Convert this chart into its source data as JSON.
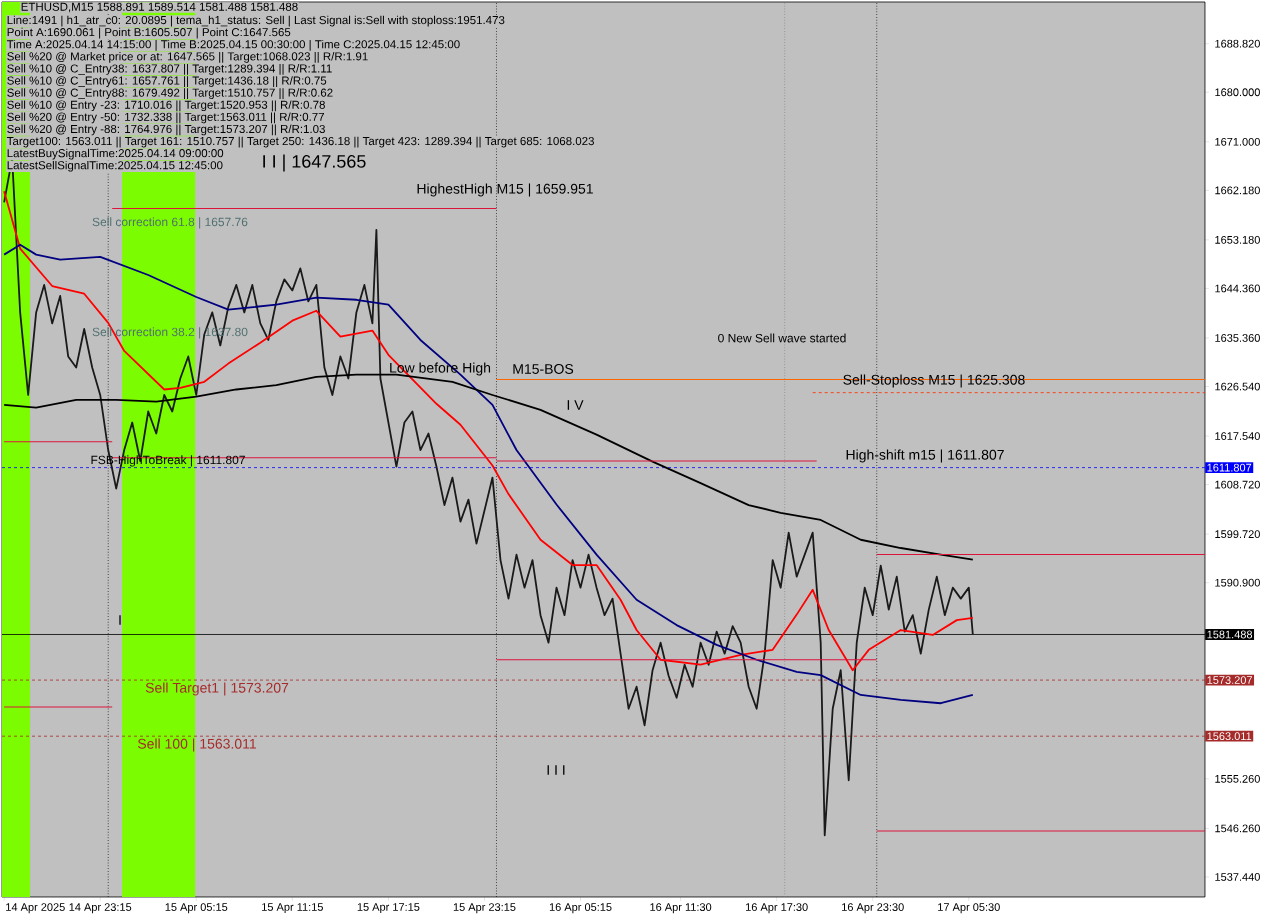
{
  "chart_data": {
    "type": "line",
    "title": "ETHUSD,M15  1588.891 1589.514 1581.488 1581.488",
    "x": [
      "2025-04-14T17:15",
      "2025-04-14T17:45",
      "2025-04-14T18:15",
      "2025-04-14T18:45",
      "2025-04-14T19:15",
      "2025-04-14T19:45",
      "2025-04-14T20:15",
      "2025-04-14T20:45",
      "2025-04-14T21:15",
      "2025-04-14T21:45",
      "2025-04-14T22:15",
      "2025-04-14T22:45",
      "2025-04-14T23:15",
      "2025-04-14T23:45",
      "2025-04-15T00:15",
      "2025-04-15T00:45",
      "2025-04-15T01:15",
      "2025-04-15T01:45",
      "2025-04-15T02:15",
      "2025-04-15T02:45",
      "2025-04-15T03:15",
      "2025-04-15T03:45",
      "2025-04-15T04:15",
      "2025-04-15T04:45",
      "2025-04-15T05:15",
      "2025-04-15T05:45",
      "2025-04-15T06:15",
      "2025-04-15T06:45",
      "2025-04-15T07:15",
      "2025-04-15T07:45",
      "2025-04-15T08:15",
      "2025-04-15T08:45",
      "2025-04-15T09:15",
      "2025-04-15T09:45",
      "2025-04-15T10:15",
      "2025-04-15T10:45",
      "2025-04-15T11:15",
      "2025-04-15T11:45",
      "2025-04-15T12:15",
      "2025-04-15T12:45",
      "2025-04-15T13:15",
      "2025-04-15T13:45",
      "2025-04-15T14:15",
      "2025-04-15T14:45",
      "2025-04-15T15:15",
      "2025-04-15T15:45",
      "2025-04-15T16:15",
      "2025-04-15T16:30",
      "2025-04-15T16:45",
      "2025-04-15T17:15",
      "2025-04-15T17:45",
      "2025-04-15T18:15",
      "2025-04-15T18:45",
      "2025-04-15T19:15",
      "2025-04-15T19:45",
      "2025-04-15T20:15",
      "2025-04-15T20:45",
      "2025-04-15T21:15",
      "2025-04-15T21:45",
      "2025-04-15T22:15",
      "2025-04-15T22:45",
      "2025-04-15T23:15",
      "2025-04-15T23:45",
      "2025-04-16T00:15",
      "2025-04-16T00:45",
      "2025-04-16T01:15",
      "2025-04-16T01:45",
      "2025-04-16T02:15",
      "2025-04-16T02:45",
      "2025-04-16T03:15",
      "2025-04-16T03:45",
      "2025-04-16T04:15",
      "2025-04-16T04:45",
      "2025-04-16T05:15",
      "2025-04-16T05:45",
      "2025-04-16T06:15",
      "2025-04-16T06:45",
      "2025-04-16T07:15",
      "2025-04-16T07:45",
      "2025-04-16T08:15",
      "2025-04-16T08:45",
      "2025-04-16T09:15",
      "2025-04-16T09:45",
      "2025-04-16T10:15",
      "2025-04-16T10:45",
      "2025-04-16T11:15",
      "2025-04-16T11:45",
      "2025-04-16T12:15",
      "2025-04-16T12:45",
      "2025-04-16T13:15",
      "2025-04-16T13:45",
      "2025-04-16T14:15",
      "2025-04-16T14:45",
      "2025-04-16T15:15",
      "2025-04-16T15:45",
      "2025-04-16T16:15",
      "2025-04-16T16:45",
      "2025-04-16T17:15",
      "2025-04-16T17:45",
      "2025-04-16T18:15",
      "2025-04-16T18:45",
      "2025-04-16T19:15",
      "2025-04-16T19:45",
      "2025-04-16T20:15",
      "2025-04-16T20:30",
      "2025-04-16T21:00",
      "2025-04-16T21:30",
      "2025-04-16T22:00",
      "2025-04-16T22:30",
      "2025-04-16T23:00",
      "2025-04-16T23:30",
      "2025-04-17T00:00",
      "2025-04-17T00:30",
      "2025-04-17T01:00",
      "2025-04-17T01:30",
      "2025-04-17T02:00",
      "2025-04-17T02:30",
      "2025-04-17T03:00",
      "2025-04-17T03:30",
      "2025-04-17T04:00",
      "2025-04-17T04:30",
      "2025-04-17T05:00",
      "2025-04-17T05:30",
      "2025-04-17T05:45"
    ],
    "series": [
      {
        "color": "#1a1a1a",
        "values": [
          1660,
          1668,
          1640,
          1625,
          1640,
          1645,
          1638,
          1643,
          1632,
          1630,
          1637,
          1630,
          1625,
          1615,
          1608,
          1615,
          1620,
          1613,
          1622,
          1618,
          1625,
          1622,
          1628,
          1632,
          1625,
          1636,
          1640,
          1634,
          1641,
          1645,
          1640,
          1645,
          1638,
          1635,
          1642,
          1646,
          1644,
          1648,
          1642,
          1645,
          1630,
          1625,
          1632,
          1628,
          1640,
          1645,
          1638,
          1655,
          1628,
          1620,
          1612,
          1620,
          1622,
          1615,
          1618,
          1612,
          1605,
          1610,
          1602,
          1606,
          1598,
          1604,
          1610,
          1595,
          1588,
          1596,
          1590,
          1595,
          1585,
          1580,
          1590,
          1585,
          1595,
          1590,
          1596,
          1590,
          1585,
          1588,
          1578,
          1568,
          1572,
          1565,
          1575,
          1580,
          1574,
          1570,
          1576,
          1572,
          1580,
          1576,
          1582,
          1578,
          1583,
          1580,
          1572,
          1568,
          1578,
          1595,
          1590,
          1600,
          1592,
          1596,
          1600,
          1580,
          1545,
          1568,
          1575,
          1555,
          1580,
          1590,
          1585,
          1594,
          1586,
          1592,
          1582,
          1585,
          1578,
          1586,
          1592,
          1585,
          1590,
          1588,
          1590,
          1581.5
        ]
      },
      {
        "color": "#ff0000",
        "x": [
          "2025-04-14T17:15",
          "2025-04-14T18:15",
          "2025-04-14T20:15",
          "2025-04-14T22:15",
          "2025-04-14T23:45",
          "2025-04-15T00:45",
          "2025-04-15T03:15",
          "2025-04-15T04:15",
          "2025-04-15T05:45",
          "2025-04-15T07:15",
          "2025-04-15T09:15",
          "2025-04-15T11:15",
          "2025-04-15T12:45",
          "2025-04-15T14:15",
          "2025-04-15T16:15",
          "2025-04-15T17:15",
          "2025-04-15T20:15",
          "2025-04-15T21:45",
          "2025-04-15T23:45",
          "2025-04-16T00:45",
          "2025-04-16T02:45",
          "2025-04-16T04:45",
          "2025-04-16T06:15",
          "2025-04-16T07:45",
          "2025-04-16T08:45",
          "2025-04-16T10:15",
          "2025-04-16T12:45",
          "2025-04-16T15:15",
          "2025-04-16T17:15",
          "2025-04-16T18:45",
          "2025-04-16T19:45",
          "2025-04-16T20:45",
          "2025-04-16T22:15",
          "2025-04-16T23:15",
          "2025-04-17T01:15",
          "2025-04-17T03:15",
          "2025-04-17T04:45",
          "2025-04-17T05:45"
        ],
        "values": [
          1662,
          1651.6,
          1644.8,
          1643.4,
          1638.1,
          1633,
          1626,
          1626.3,
          1627.4,
          1630.7,
          1634.5,
          1638.5,
          1640.3,
          1635.6,
          1636.7,
          1632.3,
          1623.4,
          1619.6,
          1612.2,
          1607,
          1598.7,
          1594.1,
          1594.1,
          1587.8,
          1582.3,
          1576.9,
          1576,
          1577.8,
          1578.7,
          1585.1,
          1589.6,
          1582.3,
          1575,
          1578.7,
          1582.3,
          1581.4,
          1584.1,
          1584.5
        ]
      },
      {
        "color": "#000080",
        "x": [
          "2025-04-14T17:15",
          "2025-04-14T18:15",
          "2025-04-14T19:15",
          "2025-04-14T20:45",
          "2025-04-14T23:15",
          "2025-04-15T02:15",
          "2025-04-15T05:15",
          "2025-04-15T07:15",
          "2025-04-15T10:15",
          "2025-04-15T12:45",
          "2025-04-15T15:15",
          "2025-04-15T17:15",
          "2025-04-15T19:15",
          "2025-04-15T21:45",
          "2025-04-15T23:45",
          "2025-04-16T01:15",
          "2025-04-16T03:45",
          "2025-04-16T06:15",
          "2025-04-16T08:45",
          "2025-04-16T11:15",
          "2025-04-16T13:45",
          "2025-04-16T16:15",
          "2025-04-16T18:45",
          "2025-04-16T20:15",
          "2025-04-16T22:45",
          "2025-04-17T01:15",
          "2025-04-17T03:45",
          "2025-04-17T05:45"
        ],
        "values": [
          1650.5,
          1652.3,
          1650.5,
          1649.6,
          1650.1,
          1646.8,
          1642.8,
          1640.5,
          1641.4,
          1642.7,
          1642.3,
          1641.4,
          1635.0,
          1628.7,
          1623.2,
          1615.0,
          1605.1,
          1596.0,
          1587.8,
          1583.2,
          1579.6,
          1576.9,
          1574.7,
          1574.1,
          1570.5,
          1569.6,
          1569.0,
          1570.5
        ]
      },
      {
        "color": "#000000",
        "x": [
          "2025-04-14T17:15",
          "2025-04-14T19:15",
          "2025-04-14T21:45",
          "2025-04-15T00:15",
          "2025-04-15T02:45",
          "2025-04-15T05:15",
          "2025-04-15T07:45",
          "2025-04-15T10:15",
          "2025-04-15T12:45",
          "2025-04-15T15:15",
          "2025-04-15T17:45",
          "2025-04-15T21:15",
          "2025-04-15T23:45",
          "2025-04-16T02:45",
          "2025-04-16T06:15",
          "2025-04-16T09:45",
          "2025-04-16T12:45",
          "2025-04-16T15:45",
          "2025-04-16T17:45",
          "2025-04-16T20:15",
          "2025-04-16T22:45",
          "2025-04-17T01:15",
          "2025-04-17T03:45",
          "2025-04-17T05:45"
        ],
        "values": [
          1623.2,
          1622.7,
          1624.1,
          1624.1,
          1623.8,
          1624.7,
          1626.0,
          1626.8,
          1628.3,
          1628.7,
          1628.7,
          1627.4,
          1625.0,
          1622.3,
          1617.8,
          1612.9,
          1609.0,
          1605.0,
          1603.6,
          1602.3,
          1598.7,
          1597.2,
          1596.0,
          1595.1
        ]
      },
      {
        "color": "#dc143c",
        "x": [
          "2025-04-15T00:00",
          "2025-04-16T00:00"
        ],
        "values": [
          1658.9,
          1658.9
        ]
      },
      {
        "color": "#dc143c",
        "x": [
          "2025-04-14T17:15",
          "2025-04-15T00:00"
        ],
        "values": [
          1616.5,
          1616.5
        ]
      },
      {
        "color": "#dc143c",
        "x": [
          "2025-04-15T00:00",
          "2025-04-16T00:00"
        ],
        "values": [
          1613.6,
          1613.6
        ]
      },
      {
        "color": "#dc143c",
        "x": [
          "2025-04-16T00:00",
          "2025-04-16T20:00"
        ],
        "values": [
          1613.0,
          1613.0
        ]
      },
      {
        "color": "#dc143c",
        "x": [
          "2025-04-16T23:45",
          "2025-04-17T20:15"
        ],
        "values": [
          1596.0,
          1596.0
        ]
      },
      {
        "color": "#dc143c",
        "x": [
          "2025-04-16T00:00",
          "2025-04-16T23:45"
        ],
        "values": [
          1576.9,
          1576.9
        ]
      },
      {
        "color": "#dc143c",
        "x": [
          "2025-04-14T17:15",
          "2025-04-15T00:00"
        ],
        "values": [
          1568.3,
          1568.3
        ]
      },
      {
        "color": "#dc143c",
        "x": [
          "2025-04-16T23:45",
          "2025-04-17T20:15"
        ],
        "values": [
          1545.8,
          1545.8
        ]
      },
      {
        "color": "#ff6600",
        "x": [
          "2025-04-16T00:00",
          "2025-04-17T20:15"
        ],
        "values": [
          1627.8,
          1627.8
        ]
      },
      {
        "color": "#ff3300",
        "x": [
          "2025-04-16T19:45",
          "2025-04-17T20:15"
        ],
        "values": [
          1625.4,
          1625.4
        ],
        "line_style": "dashed"
      }
    ],
    "xlim": [
      "2025-04-14T17:07",
      "2025-04-17T20:15"
    ],
    "ylim": [
      1533.8,
      1696.4
    ],
    "xticks": [
      {
        "value": "2025-04-14T17:15",
        "label": "14 Apr 2025"
      },
      {
        "value": "2025-04-14T23:15",
        "label": "14 Apr 23:15"
      },
      {
        "value": "2025-04-15T05:15",
        "label": "15 Apr 05:15"
      },
      {
        "value": "2025-04-15T11:15",
        "label": "15 Apr 11:15"
      },
      {
        "value": "2025-04-15T17:15",
        "label": "15 Apr 17:15"
      },
      {
        "value": "2025-04-15T23:15",
        "label": "15 Apr 23:15"
      },
      {
        "value": "2025-04-16T05:15",
        "label": "16 Apr 05:15"
      },
      {
        "value": "2025-04-16T11:30",
        "label": "16 Apr 11:30"
      },
      {
        "value": "2025-04-16T17:30",
        "label": "16 Apr 17:30"
      },
      {
        "value": "2025-04-16T23:30",
        "label": "16 Apr 23:30"
      },
      {
        "value": "2025-04-17T05:30",
        "label": "17 Apr 05:30"
      }
    ],
    "yticks": [
      {
        "value": 1688.82,
        "label": "1688.820"
      },
      {
        "value": 1680,
        "label": "1680.000"
      },
      {
        "value": 1671,
        "label": "1671.000"
      },
      {
        "value": 1662.18,
        "label": "1662.180"
      },
      {
        "value": 1653.18,
        "label": "1653.180"
      },
      {
        "value": 1644.36,
        "label": "1644.360"
      },
      {
        "value": 1635.36,
        "label": "1635.360"
      },
      {
        "value": 1626.54,
        "label": "1626.540"
      },
      {
        "value": 1617.54,
        "label": "1617.540"
      },
      {
        "value": 1608.72,
        "label": "1608.720"
      },
      {
        "value": 1599.72,
        "label": "1599.720"
      },
      {
        "value": 1590.9,
        "label": "1590.900"
      },
      {
        "value": 1555.26,
        "label": "1555.260"
      },
      {
        "value": 1546.26,
        "label": "1546.260"
      },
      {
        "value": 1537.44,
        "label": "1537.440"
      }
    ],
    "ref_lines": [
      {
        "axis": "y",
        "value": 1611.807,
        "label": "1611.807",
        "color": "#0000ff",
        "line_style": "dashed"
      },
      {
        "axis": "y",
        "value": 1581.488,
        "label": "1581.488",
        "color": "#000000",
        "line_style": "solid"
      },
      {
        "axis": "y",
        "value": 1573.207,
        "label": "1573.207",
        "color": "#a52a2a",
        "line_style": "dashed"
      },
      {
        "axis": "y",
        "value": 1563.011,
        "label": "1563.011",
        "color": "#a52a2a",
        "line_style": "dashed"
      },
      {
        "axis": "x",
        "value": "2025-04-14T23:45",
        "color": "#000000",
        "line_style": "dotted"
      },
      {
        "axis": "x",
        "value": "2025-04-16T00:00",
        "color": "#000000",
        "line_style": "dotted"
      },
      {
        "axis": "x",
        "value": "2025-04-16T18:00",
        "color": "#808080",
        "line_style": "dotted"
      },
      {
        "axis": "x",
        "value": "2025-04-16T23:45",
        "color": "#000000",
        "line_style": "dotted"
      }
    ],
    "bands": [
      {
        "axis": "x",
        "from": "2025-04-14T17:07",
        "to": "2025-04-14T18:52",
        "color": "#7cfc00"
      },
      {
        "axis": "x",
        "from": "2025-04-15T00:37",
        "to": "2025-04-15T05:11",
        "color": "#7cfc00"
      }
    ],
    "annotations": [
      "Line:1491 | h1_atr_c0: 20.0895 | tema_h1_status: Sell | Last Signal is:Sell with stoploss:1951.473",
      "Point A:1690.061 | Point B:1605.507 | Point C:1647.565",
      "Time A:2025.04.14 14:15:00 | Time B:2025.04.15 00:30:00 | Time C:2025.04.15 12:45:00",
      "Sell %20 @ Market price or at: 1647.565 || Target:1068.023 || R/R:1.91",
      "Sell %10 @ C_Entry38: 1637.807 || Target:1289.394 || R/R:1.11",
      "Sell %10 @ C_Entry61: 1657.761 || Target:1436.18 || R/R:0.75",
      "Sell %10 @ C_Entry88: 1679.492 || Target:1510.757 || R/R:0.62",
      "Sell %10 @ Entry -23: 1710.016 || Target:1520.953 || R/R:0.78",
      "Sell %20 @ Entry -50: 1732.338 || Target:1563.011 || R/R:0.77",
      "Sell %20 @ Entry -88: 1764.976 || Target:1573.207 || R/R:1.03",
      "Target100: 1563.011 || Target 161: 1510.757 || Target 250: 1436.18 || Target 423: 1289.394 || Target 685: 1068.023",
      "LatestBuySignalTime:2025.04.14 09:00:00",
      "LatestSellSignalTime:2025.04.15 12:45:00",
      "I I | 1647.565",
      "HighestHigh   M15 | 1659.951",
      "Sell correction 61.8 | 1657.76",
      "Sell correction 38.2 | 1637.80",
      "Low before High",
      "M15-BOS",
      "I V",
      "0 New Sell wave started",
      "Sell-Stoploss M15 | 1625.308",
      "High-shift m15 | 1611.807",
      "FSB-HighToBreak | 1611.807",
      "I",
      "I I I",
      "Sell Target1 | 1573.207",
      "Sell 100 | 1563.011"
    ]
  }
}
